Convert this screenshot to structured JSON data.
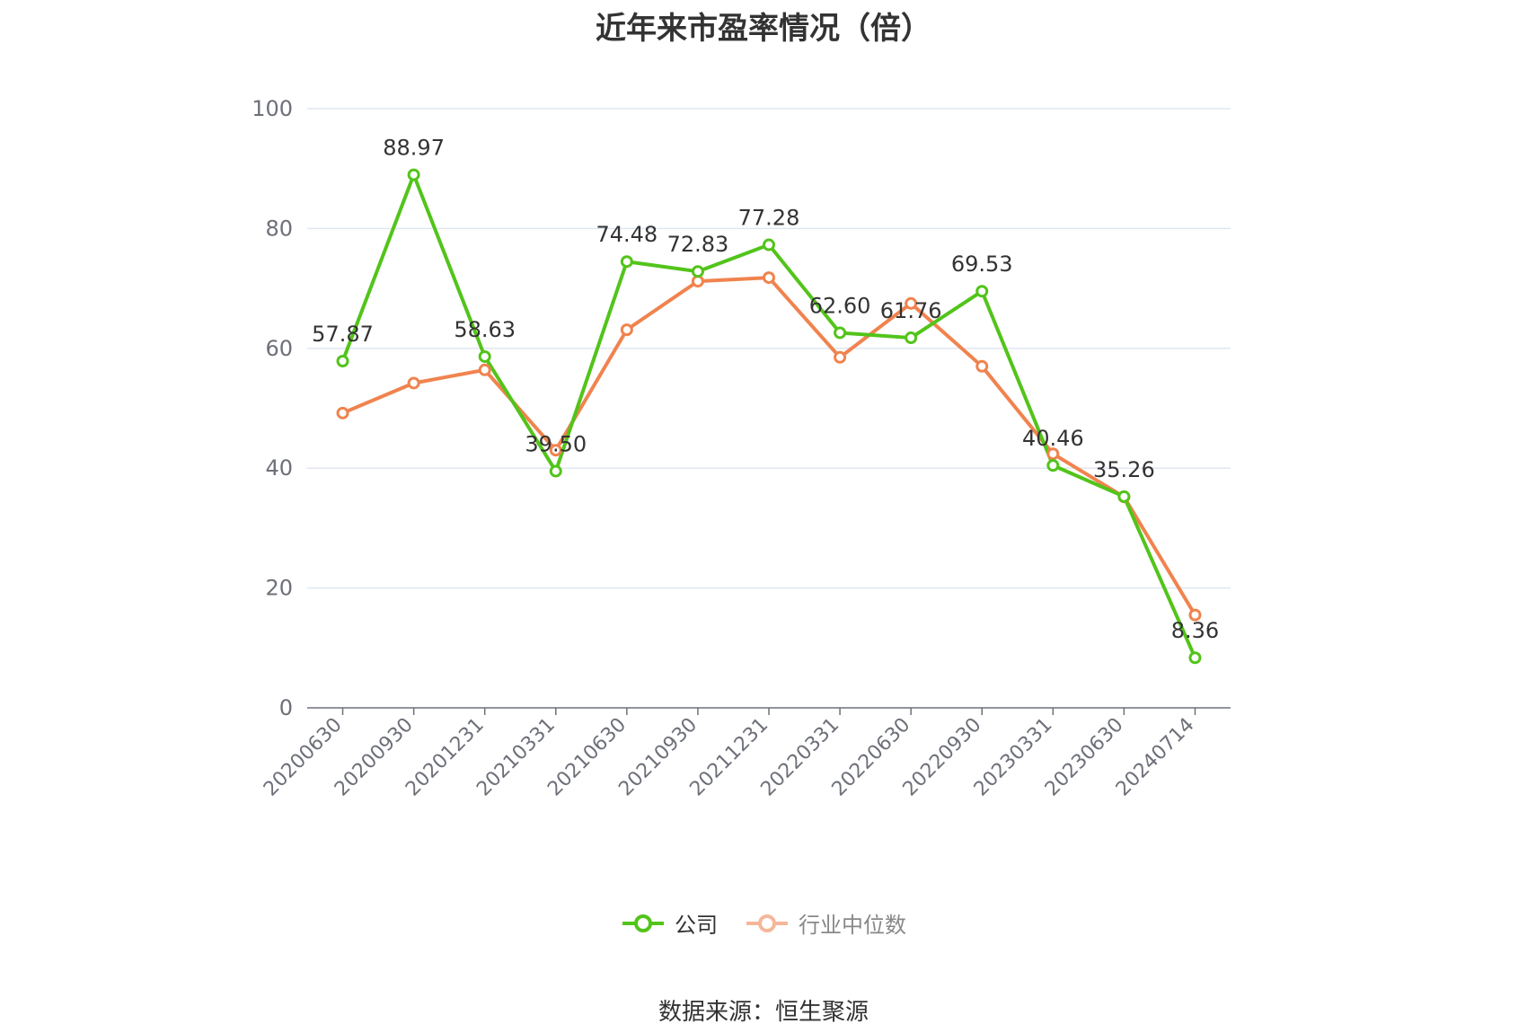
{
  "chart_data": {
    "type": "line",
    "title": "近年来市盈率情况（倍）",
    "categories": [
      "20200630",
      "20200930",
      "20201231",
      "20210331",
      "20210630",
      "20210930",
      "20211231",
      "20220331",
      "20220630",
      "20220930",
      "20230331",
      "20230630",
      "20240714"
    ],
    "series": [
      {
        "name": "公司",
        "color": "#52c41a",
        "values": [
          57.87,
          88.97,
          58.63,
          39.5,
          74.48,
          72.83,
          77.28,
          62.6,
          61.76,
          69.53,
          40.46,
          35.26,
          8.36
        ],
        "labels": [
          "57.87",
          "88.97",
          "58.63",
          "39.50",
          "74.48",
          "72.83",
          "77.28",
          "62.60",
          "61.76",
          "69.53",
          "40.46",
          "35.26",
          "8.36"
        ]
      },
      {
        "name": "行业中位数",
        "color": "#f0834e",
        "values": [
          49.2,
          54.2,
          56.4,
          43.0,
          63.1,
          71.2,
          71.8,
          58.5,
          67.5,
          57.0,
          42.4,
          35.2,
          15.5
        ]
      }
    ],
    "ylim": [
      0,
      100
    ],
    "yticks": [
      "0",
      "20",
      "40",
      "60",
      "80",
      "100"
    ],
    "grid": true,
    "legend_position": "bottom"
  },
  "legend": {
    "company": "公司",
    "industry": "行业中位数"
  },
  "source": "数据来源：恒生聚源"
}
